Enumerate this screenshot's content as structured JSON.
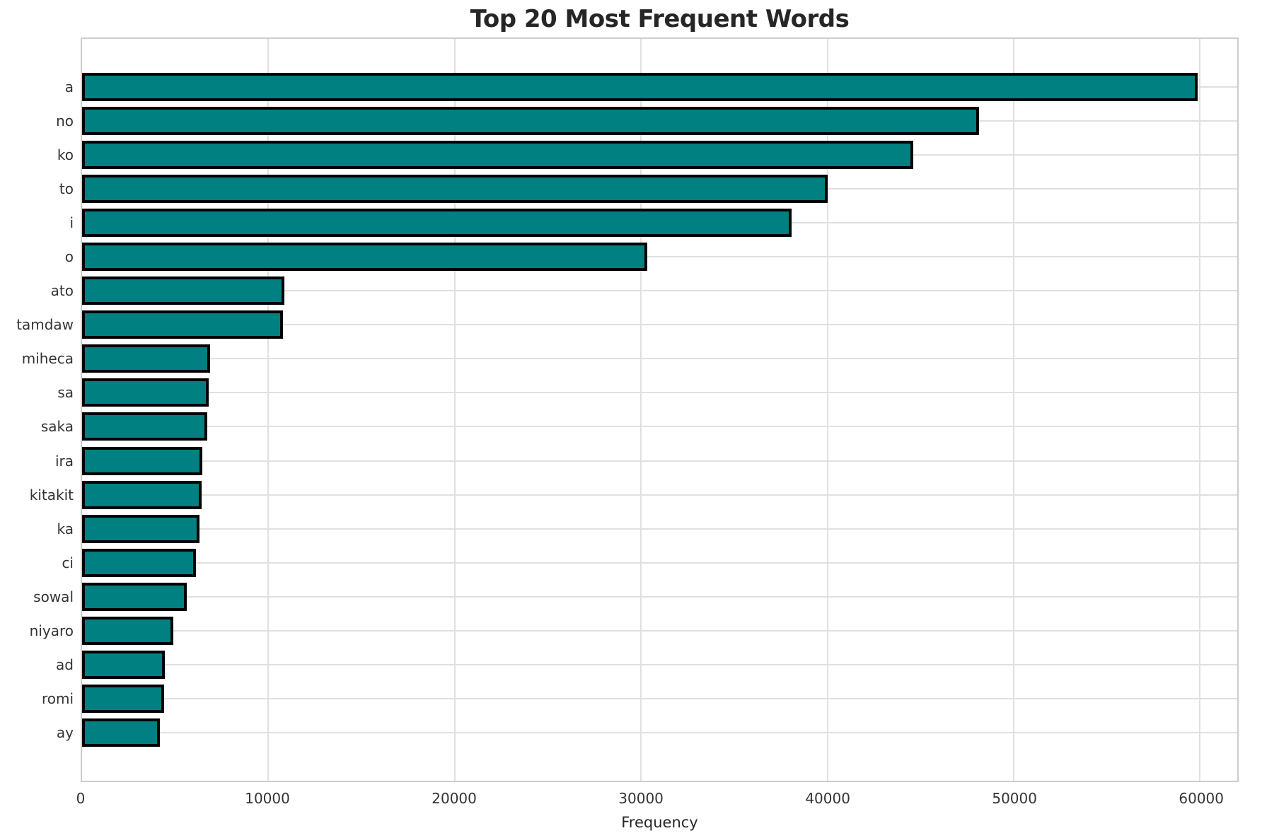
{
  "figure": {
    "title": "Top 20 Most Frequent Words",
    "xlabel": "Frequency"
  },
  "chart_data": {
    "type": "bar",
    "orientation": "horizontal",
    "title": "Top 20 Most Frequent Words",
    "xlabel": "Frequency",
    "ylabel": "",
    "categories": [
      "a",
      "no",
      "ko",
      "to",
      "i",
      "o",
      "ato",
      "tamdaw",
      "miheca",
      "sa",
      "saka",
      "ira",
      "kitakit",
      "ka",
      "ci",
      "sowal",
      "niyaro",
      "ad",
      "romi",
      "ay"
    ],
    "values": [
      59860,
      48160,
      44600,
      40000,
      38080,
      30350,
      10870,
      10800,
      6870,
      6810,
      6710,
      6440,
      6400,
      6290,
      6130,
      5630,
      4880,
      4430,
      4400,
      4160
    ],
    "xlim": [
      0,
      62000
    ],
    "xticks": [
      0,
      10000,
      20000,
      30000,
      40000,
      50000,
      60000
    ],
    "grid": true,
    "legend_position": "none",
    "bar_color": "#008080",
    "bar_edge_color": "#000000",
    "grid_color": "#e0e0e0",
    "spine_color": "#cccccc",
    "text_color": "#333333",
    "title_color": "#262626"
  }
}
